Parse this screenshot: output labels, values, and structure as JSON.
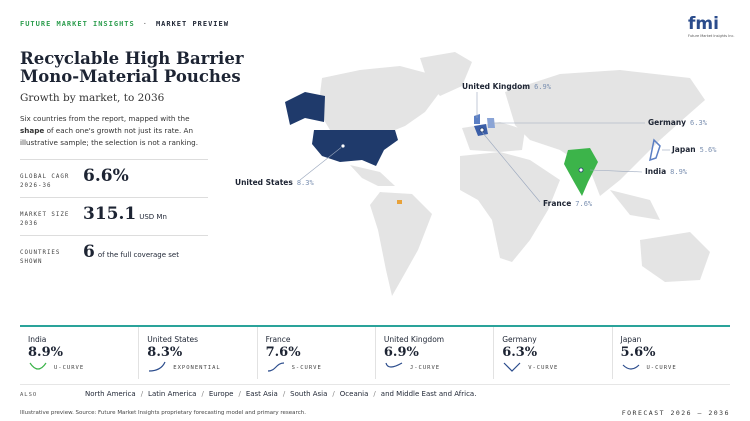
{
  "header": {
    "brand": "FUTURE MARKET INSIGHTS",
    "separator": "·",
    "section": "MARKET PREVIEW",
    "logo": "fmi",
    "logo_caption": "Future Market Insights Inc."
  },
  "title_lines": [
    "Recyclable High Barrier",
    "Mono-Material Pouches"
  ],
  "subtitle": "Growth by market, to 2036",
  "description": {
    "before": "Six countries from the report, mapped with the",
    "bold": "shape",
    "after": "of each one's growth not just its rate. An illustrative sample; the selection is not a ranking."
  },
  "stats": [
    {
      "label_lines": [
        "GLOBAL CAGR",
        "2026-36"
      ],
      "value": "6.6%"
    },
    {
      "label_lines": [
        "MARKET SIZE",
        "2036"
      ],
      "value": "315.1",
      "unit": "USD Mn"
    },
    {
      "label_lines": [
        "COUNTRIES",
        "SHOWN"
      ],
      "value": "6",
      "unit": "of the full coverage set"
    }
  ],
  "cards": [
    {
      "country": "India",
      "value": "8.9%",
      "curve": "U-CURVE"
    },
    {
      "country": "United States",
      "value": "8.3%",
      "curve": "EXPONENTIAL"
    },
    {
      "country": "France",
      "value": "7.6%",
      "curve": "S-CURVE"
    },
    {
      "country": "United Kingdom",
      "value": "6.9%",
      "curve": "J-CURVE"
    },
    {
      "country": "Germany",
      "value": "6.3%",
      "curve": "V-CURVE"
    },
    {
      "country": "Japan",
      "value": "5.6%",
      "curve": "U-CURVE"
    }
  ],
  "also": {
    "label": "ALSO",
    "regions": [
      "North America",
      "Latin America",
      "Europe",
      "East Asia",
      "South Asia",
      "Oceania",
      "and Middle East and Africa."
    ]
  },
  "footer": {
    "source": "Illustrative preview. Source: Future Market Insights proprietary forecasting model and primary research.",
    "forecast": "FORECAST 2026 – 2036"
  }
}
